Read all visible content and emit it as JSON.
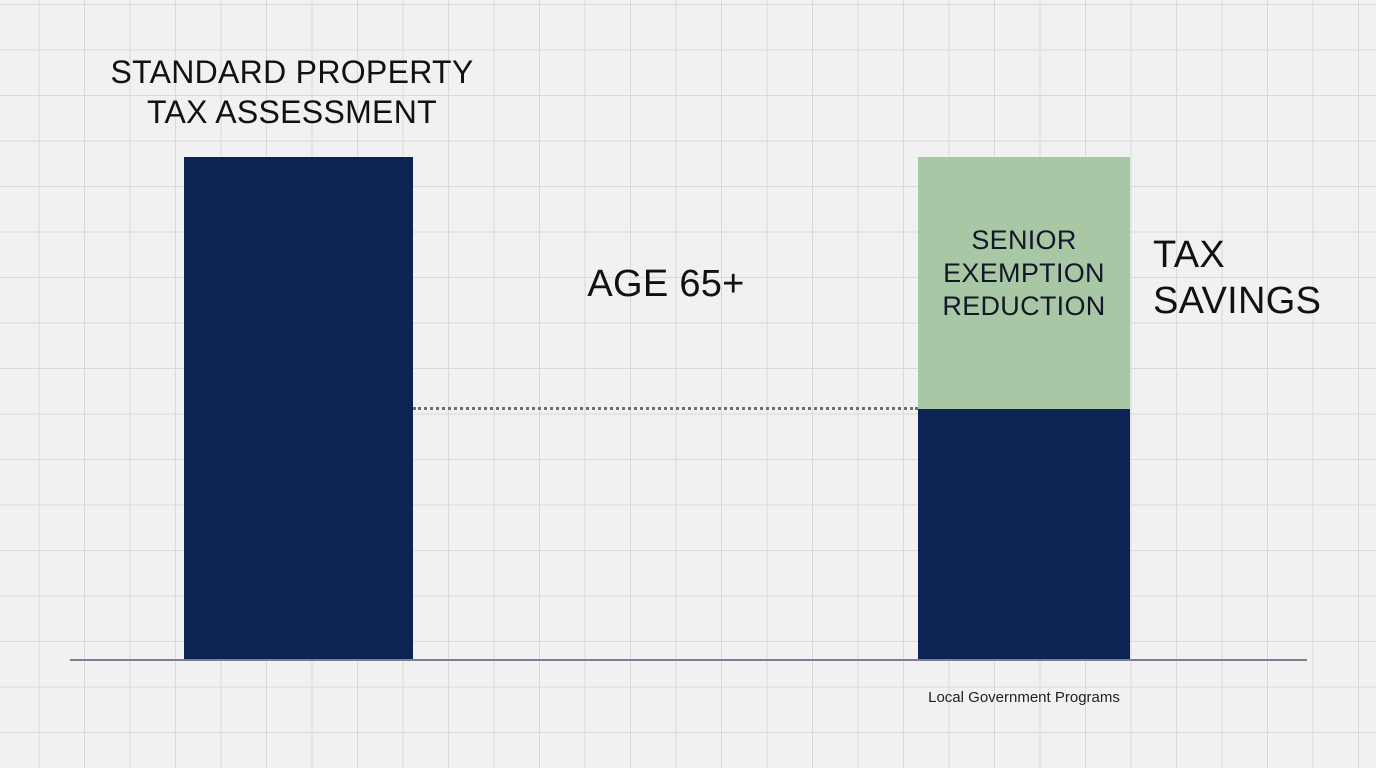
{
  "diagram": {
    "left_bar_title_line1": "STANDARD PROPERTY",
    "left_bar_title_line2": "TAX ASSESSMENT",
    "middle_label": "AGE 65+",
    "right_bar_segment_line1": "SENIOR",
    "right_bar_segment_line2": "EXEMPTION",
    "right_bar_segment_line3": "REDUCTION",
    "right_side_label_line1": "TAX",
    "right_side_label_line2": "SAVINGS",
    "source": "Local Government Programs"
  },
  "colors": {
    "assessment_bar": "#0c2454",
    "savings_segment": "#a8c7a4",
    "background": "#f1f1f1",
    "grid": "#d9d9db"
  }
}
